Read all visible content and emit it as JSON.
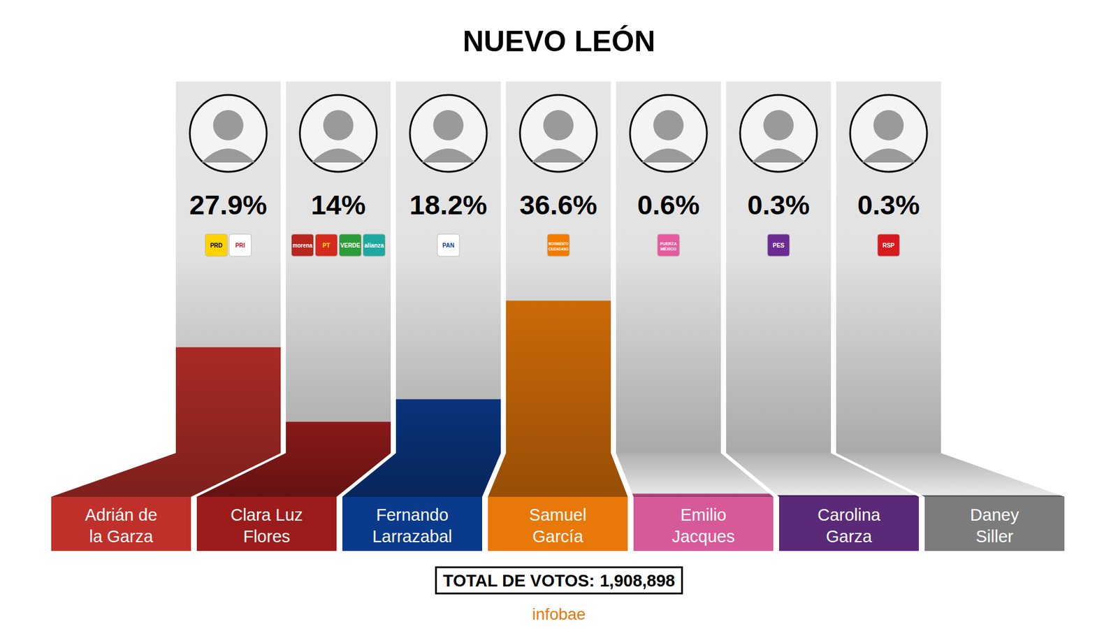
{
  "chart_data": {
    "type": "bar",
    "title": "NUEVO LEÓN",
    "categories": [
      "Adrián de la Garza",
      "Clara Luz Flores",
      "Fernando Larrazabal",
      "Samuel García",
      "Emilio Jacques",
      "Carolina Garza",
      "Daney Siller"
    ],
    "values": [
      27.9,
      14,
      18.2,
      36.6,
      0.6,
      0.3,
      0.3
    ],
    "value_labels": [
      "27.9%",
      "14%",
      "18.2%",
      "36.6%",
      "0.6%",
      "0.3%",
      "0.3%"
    ],
    "colors": [
      "#c0302a",
      "#9c1c1c",
      "#0a3a8c",
      "#e8780a",
      "#d65a98",
      "#5a2a78",
      "#7c7c7c"
    ],
    "parties": [
      [
        "PRD",
        "PRI"
      ],
      [
        "morena",
        "PT",
        "VERDE",
        "alianza"
      ],
      [
        "PAN"
      ],
      [
        "MOVIMIENTO CIUDADANO"
      ],
      [
        "FUERZA MÉXICO"
      ],
      [
        "PES"
      ],
      [
        "RSP"
      ]
    ],
    "ylim": [
      0,
      40
    ],
    "tick_labels": false,
    "data_labels": true,
    "total": {
      "label": "TOTAL DE VOTOS:",
      "value": "1,908,898"
    },
    "source": "infobae"
  }
}
